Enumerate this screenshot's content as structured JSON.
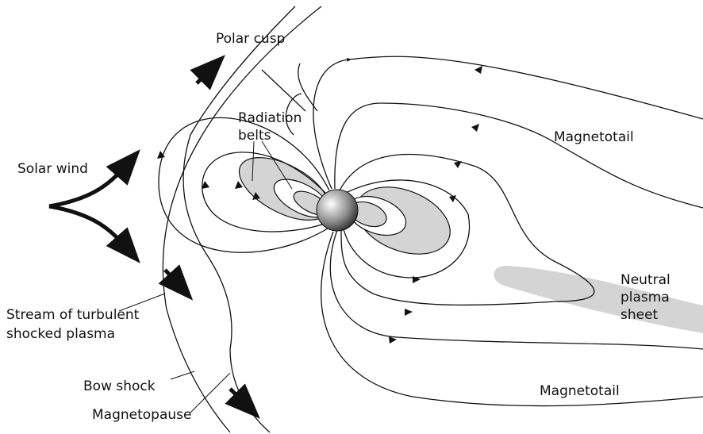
{
  "labels": {
    "polar_cusp": "Polar cusp",
    "radiation_belts": [
      "Radiation",
      "belts"
    ],
    "solar_wind": "Solar wind",
    "magnetotail_top": "Magnetotail",
    "magnetotail_bottom": "Magnetotail",
    "neutral_plasma_sheet": [
      "Neutral",
      "plasma",
      "sheet"
    ],
    "stream": [
      "Stream of turbulent",
      "shocked plasma"
    ],
    "bow_shock": "Bow shock",
    "magnetopause": "Magnetopause"
  }
}
